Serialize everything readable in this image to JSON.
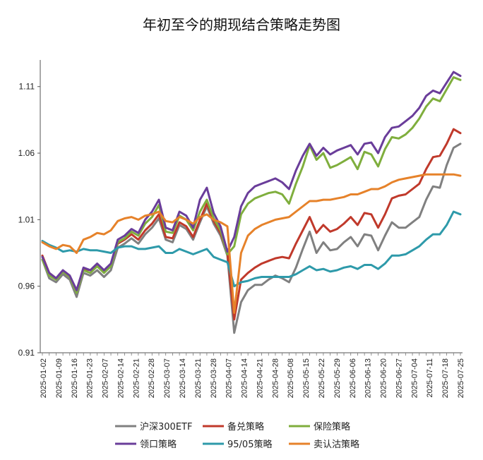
{
  "chart_data": {
    "type": "line",
    "title": "年初至今的期现结合策略走势图",
    "xlabel": "",
    "ylabel": "",
    "ylim": [
      0.91,
      1.13
    ],
    "yticks": [
      0.91,
      0.96,
      1.01,
      1.06,
      1.11
    ],
    "ytick_labels": [
      "0.91",
      "0.96",
      "1.01",
      "1.06",
      "1.11"
    ],
    "xtick_labels": [
      "2025-01-02",
      "2025-01-09",
      "2025-01-16",
      "2025-01-23",
      "2025-02-07",
      "2025-02-14",
      "2025-02-21",
      "2025-02-28",
      "2025-03-07",
      "2025-03-14",
      "2025-03-21",
      "2025-03-28",
      "2025-04-07",
      "2025-04-14",
      "2025-04-21",
      "2025-04-28",
      "2025-05-08",
      "2025-05-15",
      "2025-05-22",
      "2025-05-29",
      "2025-06-06",
      "2025-06-13",
      "2025-06-20",
      "2025-06-27",
      "2025-07-04",
      "2025-07-11",
      "2025-07-18",
      "2025-07-25"
    ],
    "grid": false,
    "legend_position": "bottom",
    "series": [
      {
        "name": "沪深300ETF",
        "color": "#808080",
        "values": [
          0.98,
          0.966,
          0.963,
          0.969,
          0.965,
          0.952,
          0.97,
          0.968,
          0.972,
          0.967,
          0.972,
          0.989,
          0.992,
          0.996,
          0.992,
          0.999,
          1.004,
          1.011,
          0.995,
          0.993,
          1.006,
          1.003,
          0.995,
          1.008,
          1.02,
          1.007,
          0.998,
          0.983,
          0.925,
          0.948,
          0.957,
          0.961,
          0.961,
          0.965,
          0.968,
          0.966,
          0.963,
          0.974,
          0.988,
          1.001,
          0.985,
          0.993,
          0.987,
          0.988,
          0.993,
          0.997,
          0.99,
          0.999,
          0.998,
          0.987,
          0.998,
          1.008,
          1.004,
          1.004,
          1.008,
          1.012,
          1.025,
          1.035,
          1.034,
          1.051,
          1.064,
          1.067
        ]
      },
      {
        "name": "备兑策略",
        "color": "#c0392b",
        "values": [
          0.983,
          0.97,
          0.966,
          0.971,
          0.967,
          0.957,
          0.973,
          0.972,
          0.976,
          0.971,
          0.976,
          0.992,
          0.995,
          0.999,
          0.995,
          1.002,
          1.007,
          1.014,
          0.997,
          0.996,
          1.008,
          1.005,
          0.997,
          1.01,
          1.022,
          1.009,
          1.0,
          0.985,
          0.935,
          0.965,
          0.97,
          0.974,
          0.977,
          0.979,
          0.981,
          0.982,
          0.981,
          0.992,
          1.002,
          1.012,
          1.0,
          1.006,
          1.001,
          1.003,
          1.007,
          1.012,
          1.006,
          1.015,
          1.014,
          1.004,
          1.014,
          1.026,
          1.028,
          1.029,
          1.033,
          1.037,
          1.048,
          1.057,
          1.058,
          1.067,
          1.078,
          1.075
        ]
      },
      {
        "name": "保险策略",
        "color": "#7fae3d",
        "values": [
          0.98,
          0.968,
          0.965,
          0.971,
          0.967,
          0.955,
          0.972,
          0.97,
          0.975,
          0.97,
          0.975,
          0.993,
          0.996,
          1.001,
          0.998,
          1.007,
          1.012,
          1.021,
          1.001,
          1.0,
          1.013,
          1.01,
          1.002,
          1.016,
          1.025,
          1.011,
          1.002,
          0.984,
          0.99,
          1.014,
          1.022,
          1.026,
          1.028,
          1.03,
          1.031,
          1.029,
          1.022,
          1.037,
          1.05,
          1.066,
          1.055,
          1.06,
          1.049,
          1.051,
          1.054,
          1.057,
          1.048,
          1.061,
          1.059,
          1.05,
          1.063,
          1.072,
          1.071,
          1.074,
          1.079,
          1.086,
          1.095,
          1.101,
          1.099,
          1.108,
          1.117,
          1.115
        ]
      },
      {
        "name": "领口策略",
        "color": "#6a3d9a",
        "values": [
          0.982,
          0.97,
          0.966,
          0.972,
          0.968,
          0.957,
          0.974,
          0.972,
          0.977,
          0.972,
          0.977,
          0.995,
          0.998,
          1.003,
          1.0,
          1.01,
          1.016,
          1.025,
          1.004,
          1.002,
          1.016,
          1.013,
          1.004,
          1.025,
          1.034,
          1.015,
          1.005,
          0.986,
          0.997,
          1.02,
          1.03,
          1.035,
          1.037,
          1.039,
          1.041,
          1.038,
          1.033,
          1.047,
          1.058,
          1.067,
          1.058,
          1.064,
          1.059,
          1.062,
          1.064,
          1.066,
          1.059,
          1.067,
          1.068,
          1.06,
          1.072,
          1.079,
          1.08,
          1.084,
          1.088,
          1.094,
          1.103,
          1.107,
          1.105,
          1.113,
          1.121,
          1.118
        ]
      },
      {
        "name": "95/05策略",
        "color": "#2e9aaa",
        "values": [
          0.994,
          0.991,
          0.989,
          0.986,
          0.987,
          0.986,
          0.988,
          0.987,
          0.987,
          0.986,
          0.985,
          0.989,
          0.99,
          0.99,
          0.988,
          0.988,
          0.989,
          0.99,
          0.985,
          0.985,
          0.988,
          0.986,
          0.984,
          0.986,
          0.988,
          0.982,
          0.98,
          0.978,
          0.96,
          0.963,
          0.964,
          0.966,
          0.967,
          0.967,
          0.967,
          0.967,
          0.967,
          0.969,
          0.972,
          0.975,
          0.972,
          0.973,
          0.971,
          0.972,
          0.974,
          0.975,
          0.973,
          0.976,
          0.976,
          0.973,
          0.977,
          0.983,
          0.983,
          0.984,
          0.987,
          0.99,
          0.995,
          0.999,
          0.999,
          1.006,
          1.016,
          1.014
        ]
      },
      {
        "name": "卖认沽策略",
        "color": "#e6822a",
        "values": [
          0.993,
          0.99,
          0.988,
          0.991,
          0.99,
          0.985,
          0.995,
          0.997,
          1.0,
          0.999,
          1.002,
          1.009,
          1.011,
          1.012,
          1.01,
          1.013,
          1.014,
          1.016,
          1.009,
          1.008,
          1.012,
          1.01,
          1.007,
          1.012,
          1.014,
          1.01,
          1.008,
          1.005,
          0.94,
          0.985,
          0.998,
          1.003,
          1.006,
          1.008,
          1.01,
          1.011,
          1.012,
          1.016,
          1.02,
          1.024,
          1.024,
          1.025,
          1.025,
          1.026,
          1.027,
          1.029,
          1.029,
          1.031,
          1.033,
          1.033,
          1.035,
          1.038,
          1.04,
          1.041,
          1.042,
          1.043,
          1.044,
          1.044,
          1.044,
          1.044,
          1.044,
          1.043
        ]
      }
    ]
  }
}
